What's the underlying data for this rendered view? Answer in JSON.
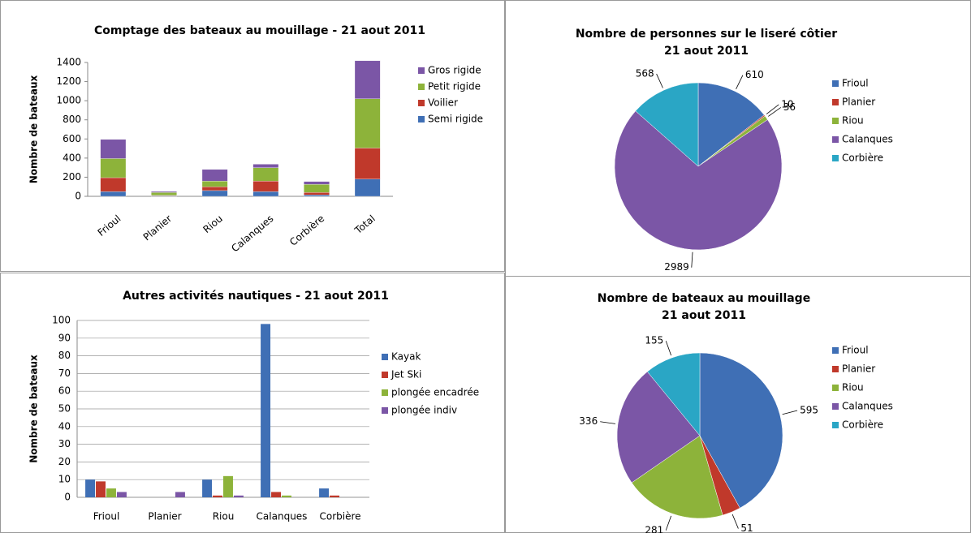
{
  "chart_data": [
    {
      "type": "stacked_bar",
      "title": "Comptage des bateaux au mouillage - 21 aout 2011",
      "y_label": "Nombre de bateaux",
      "categories": [
        "Frioul",
        "Planier",
        "Riou",
        "Calanques",
        "Corbière",
        "Total"
      ],
      "series": [
        {
          "name": "Semi rigide",
          "color": "#3f6fb5",
          "values": [
            50,
            5,
            60,
            50,
            15,
            180
          ]
        },
        {
          "name": "Voilier",
          "color": "#c0392b",
          "values": [
            145,
            5,
            40,
            110,
            25,
            325
          ]
        },
        {
          "name": "Petit rigide",
          "color": "#8db33a",
          "values": [
            200,
            30,
            60,
            140,
            85,
            515
          ]
        },
        {
          "name": "Gros rigide",
          "color": "#7b56a6",
          "values": [
            200,
            11,
            121,
            36,
            30,
            398
          ]
        }
      ],
      "ylim": [
        0,
        1400
      ],
      "yticks": [
        0,
        200,
        400,
        600,
        800,
        1000,
        1200,
        1400
      ],
      "grid": false,
      "legend": "right"
    },
    {
      "type": "pie",
      "title": "Nombre de personnes sur le liseré côtier",
      "subtitle": "21 aout 2011",
      "categories": [
        "Frioul",
        "Planier",
        "Riou",
        "Calanques",
        "Corbière"
      ],
      "values": [
        610,
        10,
        36,
        2989,
        568
      ],
      "colors": [
        "#3f6fb5",
        "#c0392b",
        "#8db33a",
        "#7b56a6",
        "#2aa6c5"
      ],
      "legend": "right"
    },
    {
      "type": "grouped_bar",
      "title": "Autres activités nautiques - 21 aout 2011",
      "y_label": "Nombre de bateaux",
      "categories": [
        "Frioul",
        "Planier",
        "Riou",
        "Calanques",
        "Corbière"
      ],
      "series": [
        {
          "name": "Kayak",
          "color": "#3f6fb5",
          "values": [
            10,
            0,
            10,
            98,
            5
          ]
        },
        {
          "name": "Jet Ski",
          "color": "#c0392b",
          "values": [
            9,
            0,
            1,
            3,
            1
          ]
        },
        {
          "name": "plongée encadrée",
          "color": "#8db33a",
          "values": [
            5,
            0,
            12,
            1,
            0
          ]
        },
        {
          "name": "plongée indiv",
          "color": "#7b56a6",
          "values": [
            3,
            3,
            1,
            0,
            0
          ]
        }
      ],
      "ylim": [
        0,
        100
      ],
      "yticks": [
        0,
        10,
        20,
        30,
        40,
        50,
        60,
        70,
        80,
        90,
        100
      ],
      "grid": true,
      "legend": "right"
    },
    {
      "type": "pie",
      "title": "Nombre de bateaux au mouillage",
      "subtitle": "21 aout 2011",
      "categories": [
        "Frioul",
        "Planier",
        "Riou",
        "Calanques",
        "Corbière"
      ],
      "values": [
        595,
        51,
        281,
        336,
        155
      ],
      "colors": [
        "#3f6fb5",
        "#c0392b",
        "#8db33a",
        "#7b56a6",
        "#2aa6c5"
      ],
      "legend": "right"
    }
  ]
}
